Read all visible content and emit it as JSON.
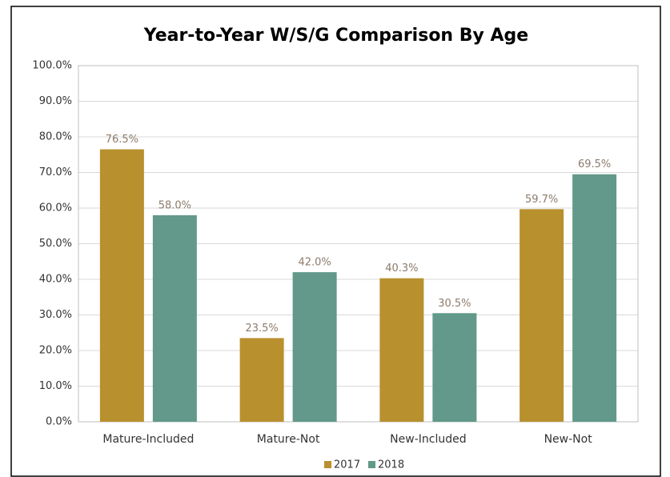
{
  "chart_data": {
    "type": "bar",
    "title": "Year-to-Year W/S/G Comparison By Age",
    "categories": [
      "Mature-Included",
      "Mature-Not",
      "New-Included",
      "New-Not"
    ],
    "series": [
      {
        "name": "2017",
        "color": "#b8902e",
        "values": [
          76.5,
          23.5,
          40.3,
          59.7
        ],
        "value_labels": [
          "76.5%",
          "23.5%",
          "40.3%",
          "59.7%"
        ]
      },
      {
        "name": "2018",
        "color": "#62998a",
        "values": [
          58.0,
          42.0,
          30.5,
          69.5
        ],
        "value_labels": [
          "58.0%",
          "42.0%",
          "30.5%",
          "69.5%"
        ]
      }
    ],
    "ylim": [
      0,
      100
    ],
    "yticks": [
      {
        "value": 0,
        "label": "0.0%"
      },
      {
        "value": 10,
        "label": "10.0%"
      },
      {
        "value": 20,
        "label": "20.0%"
      },
      {
        "value": 30,
        "label": "30.0%"
      },
      {
        "value": 40,
        "label": "40.0%"
      },
      {
        "value": 50,
        "label": "50.0%"
      },
      {
        "value": 60,
        "label": "60.0%"
      },
      {
        "value": 70,
        "label": "70.0%"
      },
      {
        "value": 80,
        "label": "80.0%"
      },
      {
        "value": 90,
        "label": "90.0%"
      },
      {
        "value": 100,
        "label": "100.0%"
      }
    ],
    "grid": true,
    "legend": "bottom"
  }
}
